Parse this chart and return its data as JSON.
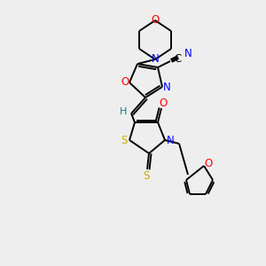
{
  "bg_color": "#eeeeee",
  "atom_colors": {
    "C": "#000000",
    "N": "#0000ff",
    "O": "#ff0000",
    "S": "#ccaa00",
    "H": "#008080"
  },
  "bond_color": "#000000",
  "figsize": [
    3.0,
    3.0
  ],
  "dpi": 100
}
